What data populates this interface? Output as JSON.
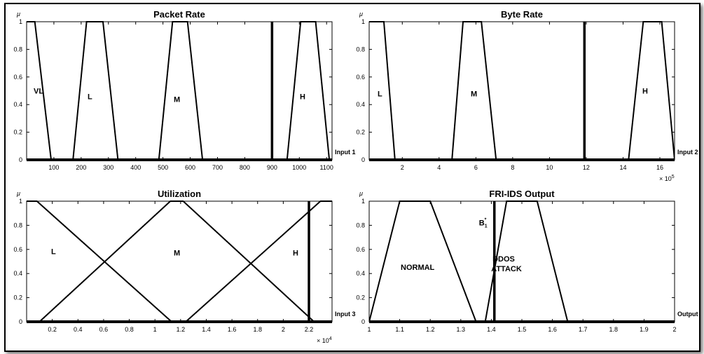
{
  "chart_data": [
    {
      "type": "line",
      "title": "Packet Rate",
      "ylabel": "μ",
      "xlabel": "Input 1",
      "xlim": [
        0,
        1120
      ],
      "ylim": [
        0,
        1
      ],
      "x_ticks": [
        100,
        200,
        300,
        400,
        500,
        600,
        700,
        800,
        900,
        1000,
        1100
      ],
      "y_ticks": [
        0,
        0.2,
        0.4,
        0.6,
        0.8,
        1
      ],
      "x_exponent": "",
      "grid": false,
      "series": [
        {
          "name": "VL",
          "x": [
            0,
            5,
            30,
            90
          ],
          "y": [
            1,
            1,
            1,
            0
          ]
        },
        {
          "name": "L",
          "x": [
            170,
            220,
            280,
            335
          ],
          "y": [
            0,
            1,
            1,
            0
          ]
        },
        {
          "name": "M",
          "x": [
            485,
            535,
            590,
            645
          ],
          "y": [
            0,
            1,
            1,
            0
          ]
        },
        {
          "name": "H",
          "x": [
            955,
            1005,
            1060,
            1110
          ],
          "y": [
            0,
            1,
            1,
            0
          ]
        }
      ],
      "crisp_input": 900
    },
    {
      "type": "line",
      "title": "Byte Rate",
      "ylabel": "μ",
      "xlabel": "Input 2",
      "xlim": [
        0.2,
        16.8
      ],
      "ylim": [
        0,
        1
      ],
      "x_ticks": [
        2,
        4,
        6,
        8,
        10,
        12,
        14,
        16
      ],
      "y_ticks": [
        0,
        0.2,
        0.4,
        0.6,
        0.8,
        1
      ],
      "x_exponent": "× 10^5",
      "grid": false,
      "series": [
        {
          "name": "L",
          "x": [
            0.2,
            0.3,
            1.0,
            1.6
          ],
          "y": [
            1,
            1,
            1,
            0
          ]
        },
        {
          "name": "M",
          "x": [
            4.7,
            5.3,
            6.3,
            7.1
          ],
          "y": [
            0,
            1,
            1,
            0
          ]
        },
        {
          "name": "H",
          "x": [
            14.3,
            15.1,
            16.1,
            16.8
          ],
          "y": [
            0,
            1,
            1,
            0
          ]
        }
      ],
      "crisp_input": 11.9
    },
    {
      "type": "line",
      "title": "Utilization",
      "ylabel": "μ",
      "xlabel": "Input 3",
      "xlim": [
        0,
        2.38
      ],
      "ylim": [
        0,
        1
      ],
      "x_ticks": [
        0.2,
        0.4,
        0.6,
        0.8,
        1,
        1.2,
        1.4,
        1.6,
        1.8,
        2,
        2.2
      ],
      "y_ticks": [
        0,
        0.2,
        0.4,
        0.6,
        0.8,
        1
      ],
      "x_exponent": "× 10^4",
      "grid": false,
      "series": [
        {
          "name": "L",
          "x": [
            0,
            0.08,
            1.13
          ],
          "y": [
            1,
            1,
            0
          ]
        },
        {
          "name": "M",
          "x": [
            0.1,
            1.12,
            1.22,
            2.24
          ],
          "y": [
            0,
            1,
            1,
            0
          ]
        },
        {
          "name": "H",
          "x": [
            1.24,
            2.29,
            2.38
          ],
          "y": [
            0,
            1,
            1
          ]
        }
      ],
      "crisp_input": 2.2
    },
    {
      "type": "line",
      "title": "FRI-IDS Output",
      "ylabel": "μ",
      "xlabel": "Output",
      "xlim": [
        1,
        2
      ],
      "ylim": [
        0,
        1
      ],
      "x_ticks": [
        1,
        1.1,
        1.2,
        1.3,
        1.4,
        1.5,
        1.6,
        1.7,
        1.8,
        1.9,
        2
      ],
      "y_ticks": [
        0,
        0.2,
        0.4,
        0.6,
        0.8,
        1
      ],
      "x_exponent": "",
      "grid": false,
      "series": [
        {
          "name": "NORMAL",
          "x": [
            1,
            1.1,
            1.2,
            1.35
          ],
          "y": [
            0,
            1,
            1,
            0
          ]
        },
        {
          "name": "DDOS ATTACK",
          "x": [
            1.38,
            1.45,
            1.55,
            1.65
          ],
          "y": [
            0,
            1,
            1,
            0
          ]
        }
      ],
      "crisp_input": 1.41,
      "crisp_label": "B",
      "crisp_label_sub": "1",
      "crisp_label_sup": "*"
    }
  ]
}
